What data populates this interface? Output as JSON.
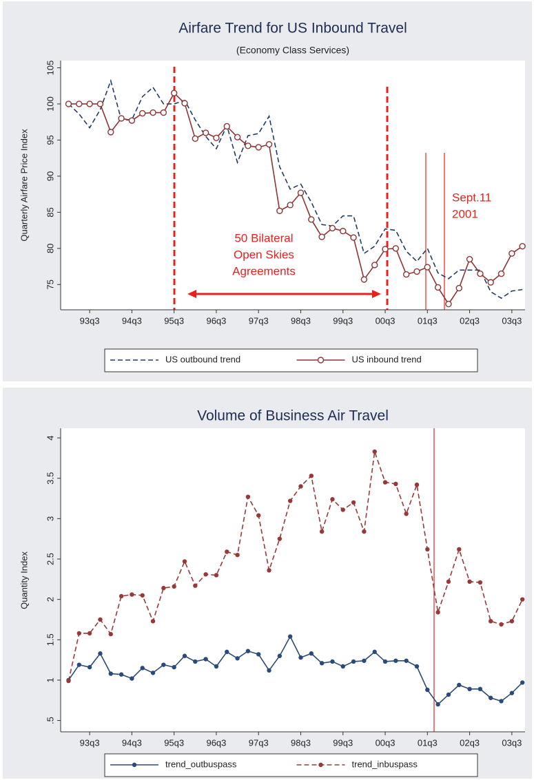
{
  "chart_data": [
    {
      "type": "line",
      "title": "Airfare Trend for US Inbound Travel",
      "subtitle": "(Economy Class Services)",
      "y_label": "Quarterly Airfare Price Index",
      "categories": [
        null,
        null,
        "93q3",
        null,
        null,
        null,
        "94q3",
        null,
        null,
        null,
        "95q3",
        null,
        null,
        null,
        "96q3",
        null,
        null,
        null,
        "97q3",
        null,
        null,
        null,
        "98q3",
        null,
        null,
        null,
        "99q3",
        null,
        null,
        null,
        "00q3",
        null,
        null,
        null,
        "01q3",
        null,
        null,
        null,
        "02q3",
        null,
        null,
        null,
        "03q3",
        null
      ],
      "ylim": [
        71.5,
        106
      ],
      "yticks": [
        75,
        80,
        85,
        90,
        95,
        100,
        105
      ],
      "annotations": [
        [
          "50 Bilateral",
          "Open Skies",
          "Agreements"
        ],
        [
          "Sept.11",
          "2001"
        ]
      ],
      "series": [
        {
          "name": "US outbound trend",
          "color": "#1f3a66",
          "style": "dashed",
          "marker": "none",
          "values": [
            100,
            98.6,
            96.7,
            99.2,
            103.2,
            97.8,
            97.8,
            101.0,
            102.3,
            100.0,
            100.0,
            100.5,
            97.8,
            95.5,
            93.8,
            97.0,
            91.9,
            95.6,
            95.9,
            98.3,
            91.3,
            88.2,
            88.9,
            86.4,
            83.3,
            83.1,
            84.5,
            84.5,
            79.3,
            80.3,
            82.7,
            82.5,
            79.6,
            78.2,
            80.0,
            76.6,
            75.8,
            77.0,
            77.0,
            77.0,
            74.0,
            73.1,
            74.1,
            74.3
          ]
        },
        {
          "name": "US inbound trend",
          "color": "#8e3232",
          "style": "solid",
          "marker": "circle-open",
          "values": [
            100,
            100,
            100,
            100,
            96.1,
            98.0,
            97.7,
            98.7,
            98.8,
            98.8,
            101.5,
            100.1,
            95.2,
            96.0,
            95.3,
            96.9,
            95.4,
            94.2,
            94.0,
            94.4,
            85.2,
            86.0,
            87.7,
            84.0,
            81.6,
            82.8,
            82.4,
            81.5,
            75.7,
            77.7,
            79.9,
            80.0,
            76.4,
            76.8,
            77.4,
            74.6,
            72.3,
            74.5,
            78.5,
            76.5,
            75.3,
            76.5,
            79.3,
            80.3
          ]
        }
      ]
    },
    {
      "type": "line",
      "title": "Volume of Business Air Travel",
      "y_label": "Quantity Index",
      "categories": [
        null,
        null,
        "93q3",
        null,
        null,
        null,
        "94q3",
        null,
        null,
        null,
        "95q3",
        null,
        null,
        null,
        "96q3",
        null,
        null,
        null,
        "97q3",
        null,
        null,
        null,
        "98q3",
        null,
        null,
        null,
        "99q3",
        null,
        null,
        null,
        "00q3",
        null,
        null,
        null,
        "01q3",
        null,
        null,
        null,
        "02q3",
        null,
        null,
        null,
        "03q3",
        null
      ],
      "ylim": [
        0.36,
        4.12
      ],
      "yticks": [
        {
          "value": 0.5,
          "label": ".5"
        },
        1,
        1.5,
        2,
        2.5,
        3,
        3.5,
        4
      ],
      "series": [
        {
          "name": "trend_outbuspass",
          "color": "#2b4a7c",
          "style": "solid",
          "marker": "dot",
          "values": [
            1.0,
            1.19,
            1.16,
            1.33,
            1.08,
            1.07,
            1.02,
            1.15,
            1.09,
            1.19,
            1.16,
            1.3,
            1.23,
            1.26,
            1.17,
            1.35,
            1.27,
            1.36,
            1.32,
            1.12,
            1.3,
            1.54,
            1.28,
            1.33,
            1.21,
            1.23,
            1.17,
            1.23,
            1.24,
            1.35,
            1.23,
            1.24,
            1.24,
            1.17,
            0.88,
            0.7,
            0.82,
            0.94,
            0.89,
            0.89,
            0.78,
            0.74,
            0.84,
            0.97
          ]
        },
        {
          "name": "trend_inbuspass",
          "color": "#983838",
          "style": "dashed",
          "marker": "dot",
          "values": [
            0.99,
            1.58,
            1.58,
            1.75,
            1.57,
            2.04,
            2.06,
            2.05,
            1.73,
            2.14,
            2.16,
            2.47,
            2.17,
            2.31,
            2.3,
            2.59,
            2.55,
            3.27,
            3.04,
            2.36,
            2.75,
            3.22,
            3.4,
            3.53,
            2.84,
            3.24,
            3.11,
            3.2,
            2.84,
            3.83,
            3.45,
            3.43,
            3.06,
            3.42,
            2.62,
            1.84,
            2.22,
            2.62,
            2.22,
            2.21,
            1.73,
            1.69,
            1.73,
            2.0
          ]
        }
      ]
    }
  ]
}
